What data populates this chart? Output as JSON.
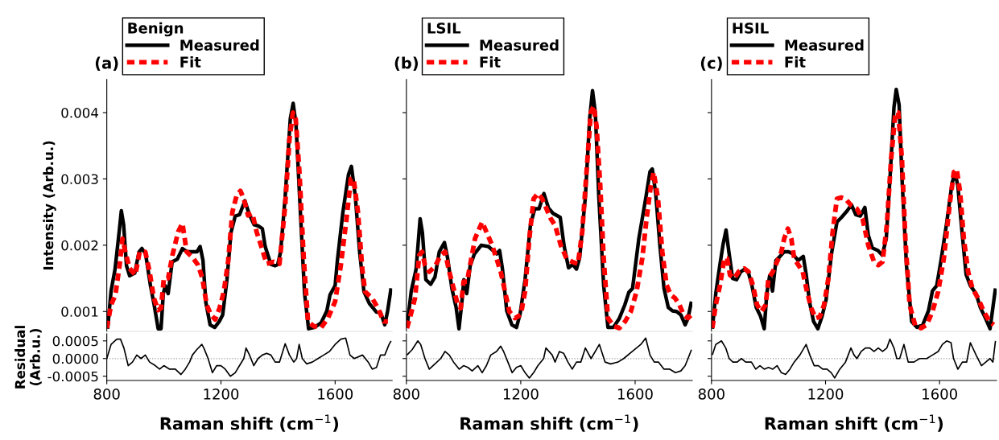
{
  "chart_data": [
    {
      "type": "line",
      "title": "(a)",
      "ylabel": "Intensity (Arb.u.)",
      "legend_title": "Benign",
      "legend": "top",
      "xlim": [
        800,
        1800
      ],
      "xticks": [
        800,
        1200,
        1600
      ],
      "ylim": [
        0.0007,
        0.0045
      ],
      "yticks": [
        0.001,
        0.002,
        0.003,
        0.004
      ],
      "tick_labels": "y",
      "series": [
        {
          "name": "Measured",
          "color": "#000000",
          "line_style": "solid",
          "x": [
            803,
            815,
            829,
            844,
            851,
            859,
            869,
            880,
            898,
            913,
            923,
            936,
            953,
            966,
            980,
            990,
            998,
            1005,
            1015,
            1029,
            1047,
            1065,
            1082,
            1116,
            1127,
            1137,
            1147,
            1162,
            1178,
            1194,
            1206,
            1221,
            1235,
            1250,
            1265,
            1284,
            1298,
            1316,
            1331,
            1345,
            1355,
            1375,
            1390,
            1399,
            1409,
            1425,
            1443,
            1453,
            1463,
            1478,
            1493,
            1507,
            1527,
            1551,
            1571,
            1582,
            1600,
            1608,
            1627,
            1647,
            1657,
            1671,
            1686,
            1701,
            1720,
            1745,
            1759,
            1774,
            1784,
            1796
          ],
          "values": [
            0.00074,
            0.00131,
            0.00164,
            0.00223,
            0.00252,
            0.00231,
            0.00169,
            0.00154,
            0.00158,
            0.0019,
            0.00195,
            0.00187,
            0.00139,
            0.0011,
            0.00074,
            0.00074,
            0.00127,
            0.00139,
            0.00127,
            0.00175,
            0.00179,
            0.00195,
            0.0019,
            0.0019,
            0.00198,
            0.00177,
            0.00114,
            0.0008,
            0.00076,
            0.00085,
            0.00095,
            0.00148,
            0.00219,
            0.00244,
            0.00246,
            0.00267,
            0.00248,
            0.00231,
            0.00229,
            0.00225,
            0.00198,
            0.00171,
            0.00169,
            0.00171,
            0.0019,
            0.00273,
            0.00391,
            0.00414,
            0.00382,
            0.00252,
            0.00127,
            0.00074,
            0.00076,
            0.00083,
            0.00101,
            0.00125,
            0.00139,
            0.00177,
            0.00249,
            0.00307,
            0.00319,
            0.00273,
            0.00189,
            0.0013,
            0.00112,
            0.00099,
            0.00099,
            0.0008,
            0.00101,
            0.00135
          ]
        },
        {
          "name": "Fit",
          "color": "#ff0000",
          "line_style": "dashed",
          "x": [
            800,
            815,
            830,
            845,
            855,
            865,
            880,
            900,
            915,
            935,
            950,
            965,
            980,
            990,
            1000,
            1015,
            1030,
            1050,
            1065,
            1080,
            1100,
            1120,
            1135,
            1150,
            1165,
            1180,
            1195,
            1210,
            1225,
            1240,
            1255,
            1268,
            1280,
            1295,
            1310,
            1325,
            1340,
            1360,
            1385,
            1405,
            1425,
            1440,
            1452,
            1462,
            1475,
            1490,
            1505,
            1525,
            1550,
            1575,
            1600,
            1620,
            1640,
            1655,
            1665,
            1680,
            1695,
            1705,
            1730,
            1750,
            1770,
            1785
          ],
          "values": [
            0.00075,
            0.0011,
            0.00125,
            0.0017,
            0.0021,
            0.0019,
            0.00165,
            0.00155,
            0.0019,
            0.0019,
            0.0016,
            0.0012,
            0.00102,
            0.00105,
            0.0015,
            0.0015,
            0.00185,
            0.0022,
            0.00233,
            0.0019,
            0.00182,
            0.0017,
            0.0015,
            0.0011,
            0.00095,
            0.00088,
            0.00105,
            0.0013,
            0.00175,
            0.0025,
            0.00275,
            0.00282,
            0.0027,
            0.00245,
            0.00248,
            0.0022,
            0.002,
            0.00172,
            0.00175,
            0.00172,
            0.0026,
            0.0036,
            0.004,
            0.0039,
            0.0031,
            0.0018,
            0.00085,
            0.00078,
            0.00075,
            0.0009,
            0.00115,
            0.0017,
            0.0024,
            0.003,
            0.003,
            0.0025,
            0.00165,
            0.0013,
            0.0012,
            0.00105,
            0.00085,
            0.00085
          ]
        }
      ]
    },
    {
      "type": "line",
      "xlabel": "Raman shift (cm$^{−1}$)",
      "ylabel": "Residual\n(Arb.u.)",
      "xlim": [
        800,
        1800
      ],
      "ylim": [
        -0.00062,
        0.0007
      ],
      "xticks": [
        800,
        1200,
        1600
      ],
      "yticks": [
        {
          "value": 0.0005,
          "label": "0.0005"
        },
        {
          "value": 0,
          "label": "0.0000"
        },
        {
          "value": -0.0005,
          "label": "-0.0005"
        }
      ],
      "ref_lines": [
        {
          "axis": "y",
          "value": 0,
          "color": "#a0a0a0",
          "line_style": "dotted"
        }
      ],
      "series": [
        {
          "color": "#000000",
          "line_style": "solid",
          "x": [
            800,
            815,
            835,
            848,
            860,
            875,
            890,
            905,
            920,
            935,
            950,
            970,
            985,
            1000,
            1020,
            1040,
            1060,
            1075,
            1090,
            1100,
            1115,
            1133,
            1140,
            1155,
            1170,
            1185,
            1200,
            1215,
            1233,
            1250,
            1265,
            1280,
            1288,
            1300,
            1315,
            1330,
            1345,
            1360,
            1375,
            1390,
            1405,
            1425,
            1440,
            1455,
            1465,
            1474,
            1485,
            1500,
            1520,
            1540,
            1560,
            1580,
            1600,
            1620,
            1637,
            1652,
            1667,
            1696,
            1716,
            1730,
            1745,
            1759,
            1774,
            1789,
            1796
          ],
          "values": [
            0,
            0.0004,
            0.00055,
            0.00055,
            0.0003,
            -0.0002,
            -0.0001,
            0.0001,
            0,
            0.0001,
            -0.0001,
            -0.0002,
            -0.0003,
            -0.0002,
            -0.0003,
            -0.0003,
            -0.00045,
            -0.0003,
            -0.0001,
            0.0001,
            0.00025,
            0.0004,
            0.0003,
            0,
            -0.0004,
            -0.0002,
            -0.0002,
            -0.0003,
            -0.0005,
            -0.0004,
            -0.0002,
            0,
            0.0003,
            0.0001,
            -0.0002,
            0,
            0.0001,
            0.00015,
            0.0001,
            -0.0001,
            -0.0001,
            0.00042,
            0.0001,
            -0.0001,
            0,
            0.0004,
            0,
            -0.00015,
            -0.0001,
            0,
            0.0001,
            0.0002,
            0.0004,
            0.00055,
            0.00058,
            0.0001,
            0,
            0.0001,
            -0.0001,
            -0.0003,
            -0.00025,
            0.0001,
            0.0001,
            0.0004,
            0.0005
          ]
        }
      ]
    },
    {
      "type": "line",
      "title": "(b)",
      "legend_title": "LSIL",
      "legend": "top",
      "xlim": [
        800,
        1800
      ],
      "xticks": [
        800,
        1200,
        1600
      ],
      "ylim": [
        0.0007,
        0.0045
      ],
      "yticks": [
        {
          "value": 0.001,
          "label": null
        },
        {
          "value": 0.002,
          "label": null
        },
        {
          "value": 0.003,
          "label": null
        },
        {
          "value": 0.004,
          "label": null
        }
      ],
      "tick_labels": false,
      "series": [
        {
          "name": "Measured",
          "color": "#000000",
          "line_style": "solid",
          "x": [
            802,
            817,
            834,
            848,
            856,
            868,
            885,
            900,
            915,
            933,
            944,
            959,
            974,
            984,
            994,
            1001,
            1011,
            1023,
            1038,
            1062,
            1087,
            1116,
            1126,
            1136,
            1151,
            1169,
            1185,
            1198,
            1215,
            1234,
            1249,
            1264,
            1281,
            1297,
            1313,
            1338,
            1352,
            1367,
            1382,
            1395,
            1406,
            1426,
            1441,
            1451,
            1461,
            1473,
            1490,
            1505,
            1524,
            1544,
            1564,
            1578,
            1591,
            1613,
            1638,
            1652,
            1660,
            1672,
            1687,
            1701,
            1716,
            1731,
            1745,
            1760,
            1775,
            1785,
            1797
          ],
          "values": [
            0.00076,
            0.00131,
            0.00164,
            0.0024,
            0.00219,
            0.00148,
            0.00141,
            0.00152,
            0.0019,
            0.00204,
            0.00181,
            0.00135,
            0.00106,
            0.00074,
            0.00114,
            0.00148,
            0.00127,
            0.00169,
            0.00187,
            0.002,
            0.00198,
            0.00187,
            0.00192,
            0.00164,
            0.00101,
            0.0008,
            0.00076,
            0.00097,
            0.00148,
            0.00231,
            0.00255,
            0.00255,
            0.00278,
            0.00256,
            0.00248,
            0.00242,
            0.00198,
            0.00166,
            0.00171,
            0.00164,
            0.00181,
            0.00273,
            0.00391,
            0.00433,
            0.00399,
            0.00273,
            0.00139,
            0.00076,
            0.00076,
            0.00089,
            0.0011,
            0.00129,
            0.00135,
            0.0021,
            0.00273,
            0.00311,
            0.00315,
            0.00278,
            0.00198,
            0.00135,
            0.00106,
            0.00101,
            0.001,
            0.00095,
            0.0008,
            0.0009,
            0.00115
          ]
        },
        {
          "name": "Fit",
          "color": "#ff0000",
          "line_style": "dashed",
          "x": [
            802,
            815,
            830,
            845,
            855,
            865,
            880,
            900,
            920,
            935,
            950,
            965,
            980,
            990,
            1000,
            1012,
            1025,
            1040,
            1055,
            1065,
            1080,
            1100,
            1115,
            1130,
            1145,
            1160,
            1180,
            1200,
            1215,
            1230,
            1245,
            1260,
            1275,
            1290,
            1305,
            1320,
            1340,
            1360,
            1380,
            1400,
            1415,
            1430,
            1445,
            1455,
            1465,
            1478,
            1490,
            1505,
            1525,
            1545,
            1565,
            1585,
            1605,
            1625,
            1640,
            1655,
            1665,
            1680,
            1695,
            1710,
            1725,
            1740,
            1755,
            1770,
            1785,
            1797
          ],
          "values": [
            0.00075,
            0.00095,
            0.0012,
            0.00185,
            0.0019,
            0.0017,
            0.0016,
            0.00168,
            0.00185,
            0.0019,
            0.0016,
            0.00135,
            0.0011,
            0.00105,
            0.00145,
            0.00145,
            0.00175,
            0.0021,
            0.00225,
            0.00235,
            0.0022,
            0.002,
            0.0018,
            0.0016,
            0.0013,
            0.001,
            0.0009,
            0.00095,
            0.0013,
            0.0021,
            0.0027,
            0.00278,
            0.0027,
            0.00255,
            0.0024,
            0.0023,
            0.002,
            0.0018,
            0.00175,
            0.00172,
            0.0022,
            0.0031,
            0.004,
            0.0041,
            0.0038,
            0.0029,
            0.0018,
            0.0009,
            0.00078,
            0.00075,
            0.00085,
            0.001,
            0.0013,
            0.0018,
            0.0024,
            0.0029,
            0.0031,
            0.0027,
            0.0019,
            0.0014,
            0.00125,
            0.0012,
            0.0011,
            0.00095,
            0.0009,
            0.00095
          ]
        }
      ]
    },
    {
      "type": "line",
      "xlabel": "Raman shift (cm$^{−1}$)",
      "xlim": [
        800,
        1800
      ],
      "ylim": [
        -0.00062,
        0.0007
      ],
      "xticks": [
        800,
        1200,
        1600
      ],
      "yticks": [
        {
          "value": 0.0005,
          "label": null
        },
        {
          "value": 0,
          "label": null
        },
        {
          "value": -0.0005,
          "label": null
        }
      ],
      "tick_labels": "x",
      "ref_lines": [
        {
          "axis": "y",
          "value": 0,
          "color": "#a0a0a0",
          "line_style": "dotted"
        }
      ],
      "series": [
        {
          "color": "#000000",
          "line_style": "solid",
          "x": [
            802,
            820,
            840,
            850,
            865,
            880,
            900,
            920,
            935,
            950,
            965,
            985,
            1000,
            1015,
            1030,
            1050,
            1065,
            1080,
            1095,
            1115,
            1130,
            1140,
            1155,
            1170,
            1185,
            1200,
            1215,
            1230,
            1245,
            1260,
            1280,
            1288,
            1310,
            1320,
            1335,
            1350,
            1365,
            1380,
            1395,
            1410,
            1426,
            1446,
            1475,
            1495,
            1514,
            1540,
            1560,
            1590,
            1620,
            1637,
            1652,
            1667,
            1682,
            1701,
            1721,
            1741,
            1760,
            1775,
            1785,
            1797
          ],
          "values": [
            0.0001,
            0.00025,
            0.0005,
            0.0004,
            0,
            -0.0003,
            -0.00015,
            0,
            0.0002,
            0.0001,
            -0.0001,
            -0.0003,
            -0.0002,
            -0.00025,
            -0.00035,
            -0.0002,
            -0.0004,
            -0.0002,
            0.0001,
            0.0002,
            0.00035,
            0.0002,
            -0.0001,
            -0.0004,
            -0.00025,
            -0.0002,
            -0.0004,
            -0.00055,
            -0.0004,
            -0.0002,
            0,
            0.0003,
            0.0001,
            -0.0001,
            0.0002,
            0.00015,
            -0.0001,
            -0.0003,
            -0.0001,
            -0.0001,
            0.0003,
            0,
            0.0004,
            -0.0001,
            -0.00015,
            -0.0001,
            0,
            0.0002,
            0.0004,
            0.00058,
            0.0001,
            -0.0001,
            -0.0001,
            -0.0003,
            -0.0003,
            -0.0004,
            -0.00035,
            -0.0002,
            0,
            0.00025
          ]
        }
      ]
    },
    {
      "type": "line",
      "title": "(c)",
      "legend_title": "HSIL",
      "legend": "top",
      "xlim": [
        800,
        1800
      ],
      "xticks": [
        800,
        1200,
        1600
      ],
      "ylim": [
        0.0007,
        0.0045
      ],
      "yticks": [
        {
          "value": 0.001,
          "label": null
        },
        {
          "value": 0.002,
          "label": null
        },
        {
          "value": 0.003,
          "label": null
        },
        {
          "value": 0.004,
          "label": null
        }
      ],
      "tick_labels": false,
      "series": [
        {
          "name": "Measured",
          "color": "#000000",
          "line_style": "solid",
          "x": [
            803,
            815,
            829,
            841,
            851,
            861,
            874,
            888,
            903,
            917,
            930,
            942,
            957,
            972,
            985,
            994,
            1004,
            1014,
            1026,
            1040,
            1055,
            1070,
            1085,
            1104,
            1122,
            1132,
            1144,
            1158,
            1173,
            1188,
            1202,
            1222,
            1240,
            1256,
            1276,
            1291,
            1306,
            1322,
            1338,
            1350,
            1364,
            1384,
            1399,
            1413,
            1428,
            1440,
            1448,
            1458,
            1469,
            1484,
            1502,
            1521,
            1541,
            1561,
            1575,
            1590,
            1605,
            1624,
            1644,
            1654,
            1664,
            1678,
            1693,
            1708,
            1728,
            1743,
            1762,
            1777,
            1787,
            1796
          ],
          "values": [
            0.00074,
            0.00127,
            0.00169,
            0.00202,
            0.00223,
            0.0019,
            0.0015,
            0.00148,
            0.0016,
            0.00164,
            0.00158,
            0.00139,
            0.00106,
            0.00093,
            0.00074,
            0.00127,
            0.00154,
            0.00131,
            0.00177,
            0.00183,
            0.0019,
            0.0019,
            0.00187,
            0.00177,
            0.00183,
            0.00156,
            0.00114,
            0.00085,
            0.00074,
            0.00093,
            0.00118,
            0.0019,
            0.00235,
            0.00242,
            0.00252,
            0.00261,
            0.00246,
            0.00244,
            0.00257,
            0.00215,
            0.00196,
            0.00192,
            0.00185,
            0.0021,
            0.00315,
            0.00408,
            0.00435,
            0.00412,
            0.00294,
            0.00169,
            0.00085,
            0.00076,
            0.0008,
            0.00101,
            0.00131,
            0.00139,
            0.00177,
            0.00231,
            0.00294,
            0.00309,
            0.0029,
            0.00223,
            0.00156,
            0.00139,
            0.00127,
            0.00106,
            0.00089,
            0.00074,
            0.00106,
            0.00135
          ]
        },
        {
          "name": "Fit",
          "color": "#ff0000",
          "line_style": "dashed",
          "x": [
            803,
            815,
            830,
            845,
            855,
            865,
            880,
            895,
            915,
            930,
            945,
            960,
            975,
            990,
            1000,
            1015,
            1030,
            1045,
            1055,
            1068,
            1080,
            1090,
            1105,
            1120,
            1135,
            1150,
            1165,
            1180,
            1195,
            1210,
            1225,
            1240,
            1255,
            1270,
            1290,
            1310,
            1330,
            1350,
            1370,
            1385,
            1400,
            1415,
            1430,
            1445,
            1455,
            1468,
            1480,
            1495,
            1515,
            1535,
            1555,
            1575,
            1595,
            1615,
            1635,
            1650,
            1660,
            1672,
            1685,
            1700,
            1715,
            1735,
            1755,
            1775,
            1790
          ],
          "values": [
            0.00075,
            0.0011,
            0.0014,
            0.0018,
            0.0018,
            0.00155,
            0.0015,
            0.0016,
            0.00165,
            0.0016,
            0.0014,
            0.0011,
            0.001,
            0.0011,
            0.0015,
            0.0016,
            0.00175,
            0.0019,
            0.0021,
            0.00225,
            0.0021,
            0.0018,
            0.0017,
            0.0016,
            0.0013,
            0.00105,
            0.0009,
            0.00092,
            0.0011,
            0.0015,
            0.0022,
            0.0027,
            0.00272,
            0.0027,
            0.0026,
            0.00255,
            0.0024,
            0.002,
            0.00175,
            0.0017,
            0.00175,
            0.0023,
            0.0033,
            0.004,
            0.004,
            0.0033,
            0.0021,
            0.0011,
            0.00078,
            0.00075,
            0.0008,
            0.001,
            0.0013,
            0.0018,
            0.0026,
            0.0031,
            0.00315,
            0.0028,
            0.0021,
            0.0016,
            0.00135,
            0.0012,
            0.001,
            0.00085,
            0.0008
          ]
        }
      ]
    },
    {
      "type": "line",
      "xlabel": "Raman shift (cm$^{−1}$)",
      "xlim": [
        800,
        1800
      ],
      "ylim": [
        -0.00062,
        0.0007
      ],
      "xticks": [
        800,
        1200,
        1600
      ],
      "yticks": [
        {
          "value": 0.0005,
          "label": null
        },
        {
          "value": 0,
          "label": null
        },
        {
          "value": -0.0005,
          "label": null
        }
      ],
      "tick_labels": "x",
      "ref_lines": [
        {
          "axis": "y",
          "value": 0,
          "color": "#a0a0a0",
          "line_style": "dotted"
        }
      ],
      "series": [
        {
          "color": "#000000",
          "line_style": "solid",
          "x": [
            803,
            815,
            835,
            850,
            862,
            875,
            890,
            905,
            920,
            940,
            955,
            970,
            985,
            1000,
            1015,
            1030,
            1045,
            1060,
            1075,
            1090,
            1110,
            1132,
            1145,
            1160,
            1175,
            1190,
            1205,
            1220,
            1232,
            1250,
            1270,
            1289,
            1300,
            1310,
            1325,
            1340,
            1355,
            1370,
            1385,
            1400,
            1415,
            1426,
            1440,
            1450,
            1460,
            1475,
            1490,
            1510,
            1530,
            1555,
            1575,
            1595,
            1610,
            1625,
            1640,
            1649,
            1664,
            1680,
            1695,
            1708,
            1728,
            1747,
            1762,
            1777,
            1787,
            1796
          ],
          "values": [
            0.0001,
            0.0004,
            0.0005,
            0.0003,
            0,
            -0.0001,
            -0.0001,
            0,
            -0.0001,
            -0.0001,
            -0.0003,
            -0.0002,
            -0.0003,
            -0.00025,
            -0.0003,
            -0.0002,
            -0.0004,
            -0.00045,
            -0.0003,
            -0.0001,
            0.0001,
            0.0004,
            0.0001,
            -0.0002,
            -0.0002,
            -0.0003,
            -0.0003,
            -0.0004,
            -0.00055,
            -0.0003,
            -0.0001,
            0.0003,
            0.0001,
            0,
            0.0002,
            0.0003,
            0.0003,
            0.0002,
            0.0003,
            0.0002,
            0.0003,
            0.00055,
            0.0003,
            0,
            0,
            0.0004,
            -0.0001,
            -0.0001,
            0,
            0,
            0.0001,
            0.0002,
            0.0004,
            0.0005,
            0.00045,
            0,
            -0.0003,
            -0.0001,
            -0.0001,
            0.00045,
            0.0001,
            -0.0002,
            -0.0001,
            0,
            -0.0001,
            0.0005
          ]
        }
      ]
    }
  ]
}
